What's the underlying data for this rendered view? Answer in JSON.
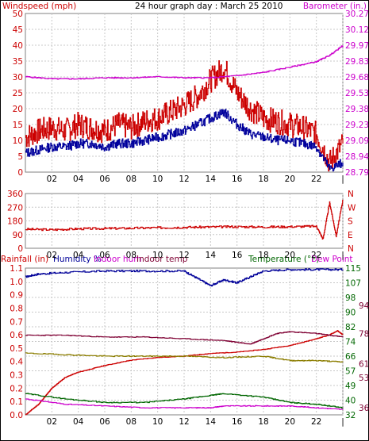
{
  "colors": {
    "windspeed": "#cc0000",
    "windspeed_avg": "#00009c",
    "barometer": "#cc00cc",
    "direction": "#cc0000",
    "rainfall": "#cc0000",
    "humidity": "#000099",
    "indoor_hum": "#8b7d00",
    "indoor_temp": "#7f0033",
    "temperature": "#006600",
    "dew_point": "#cc00cc",
    "grid": "#c8c8c8"
  },
  "chart_data": [
    {
      "type": "line",
      "title": "24 hour graph day : March 25 2010",
      "ylabel_left": "Windspeed (mph)",
      "ylabel_right": "Barometer (in.)",
      "x_ticks": [
        "02",
        "04",
        "06",
        "08",
        "10",
        "12",
        "14",
        "16",
        "18",
        "20",
        "22",
        "|"
      ],
      "ylim_left": [
        0,
        50
      ],
      "y_ticks_left": [
        "0",
        "5",
        "10",
        "15",
        "20",
        "25",
        "30",
        "35",
        "40",
        "45",
        "50"
      ],
      "ylim_right": [
        28.79,
        30.27
      ],
      "y_ticks_right": [
        "28.79",
        "28.94",
        "29.09",
        "29.23",
        "29.38",
        "29.53",
        "29.68",
        "29.83",
        "29.97",
        "30.12",
        "30.27"
      ],
      "grid": true,
      "series": [
        {
          "axis": "left",
          "x": [
            0,
            1,
            2,
            3,
            4,
            5,
            6,
            7,
            8,
            9,
            10,
            11,
            12,
            13,
            14,
            15,
            16,
            17,
            18,
            19,
            20,
            21,
            22,
            23,
            24
          ],
          "values": [
            11,
            13,
            14,
            13,
            15,
            14,
            13,
            15,
            14,
            16,
            17,
            19,
            21,
            24,
            29,
            33,
            25,
            20,
            17,
            16,
            15,
            14,
            12,
            3,
            9
          ]
        },
        {
          "axis": "left",
          "x": [
            0,
            1,
            2,
            3,
            4,
            5,
            6,
            7,
            8,
            9,
            10,
            11,
            12,
            13,
            14,
            15,
            16,
            17,
            18,
            19,
            20,
            21,
            22,
            23,
            24
          ],
          "values": [
            6,
            7,
            8,
            8,
            9,
            9,
            8,
            9,
            9,
            10,
            11,
            12,
            13,
            15,
            17,
            19,
            15,
            12,
            11,
            10,
            10,
            9,
            8,
            1,
            3
          ]
        },
        {
          "axis": "right",
          "x": [
            0,
            2,
            4,
            6,
            8,
            10,
            12,
            14,
            16,
            18,
            20,
            22,
            23,
            24
          ],
          "values": [
            29.68,
            29.66,
            29.66,
            29.67,
            29.67,
            29.68,
            29.67,
            29.67,
            29.69,
            29.72,
            29.77,
            29.82,
            29.88,
            29.97
          ]
        }
      ]
    },
    {
      "type": "line",
      "x_ticks": [
        "02",
        "04",
        "06",
        "08",
        "10",
        "12",
        "14",
        "16",
        "18",
        "20",
        "22",
        "|"
      ],
      "ylim_left": [
        0,
        360
      ],
      "y_ticks_left": [
        "0",
        "90",
        "180",
        "270",
        "360"
      ],
      "y_ticks_right": [
        "N",
        "E",
        "S",
        "W",
        "N"
      ],
      "grid": true,
      "series": [
        {
          "axis": "left",
          "x": [
            0,
            2,
            4,
            6,
            8,
            10,
            12,
            14,
            16,
            18,
            20,
            22,
            22.5,
            23,
            23.5,
            24
          ],
          "values": [
            125,
            122,
            128,
            130,
            132,
            135,
            138,
            140,
            142,
            140,
            142,
            145,
            60,
            300,
            80,
            320
          ]
        }
      ]
    },
    {
      "type": "line",
      "legend": [
        "Rainfall (in)",
        "Humidity %",
        "Indoor hum",
        "Indoor temp",
        "Temperature (°F)",
        "Dew Point"
      ],
      "x_ticks": [
        "02",
        "04",
        "06",
        "08",
        "10",
        "12",
        "14",
        "16",
        "18",
        "20",
        "22",
        "|"
      ],
      "ylim_left_rain": [
        0,
        1.1
      ],
      "y_ticks_rain": [
        "0.0",
        "0.1",
        "0.2",
        "0.3",
        "0.4",
        "0.5",
        "0.6",
        "0.7",
        "0.8",
        "0.9",
        "1.0",
        "1.1"
      ],
      "ylim_left_pct": [
        0,
        100
      ],
      "y_ticks_pct": [
        "0",
        "10",
        "20",
        "30",
        "40",
        "50",
        "60",
        "70",
        "80",
        "90",
        "100"
      ],
      "ylim_right_temp": [
        32,
        115
      ],
      "y_ticks_temp": [
        "32",
        "36",
        "40",
        "49",
        "53",
        "57",
        "61",
        "66",
        "74",
        "78",
        "82",
        "90",
        "94",
        "98",
        "107",
        "115"
      ],
      "y_ticks_temp_green": [
        "32",
        "40",
        "49",
        "57",
        "66",
        "74",
        "82",
        "90",
        "98",
        "107",
        "115"
      ],
      "y_ticks_temp_red": [
        "36",
        "53",
        "61",
        "78",
        "94"
      ],
      "grid": true,
      "series": [
        {
          "scale": "rain",
          "x": [
            0,
            1,
            2,
            3,
            4,
            6,
            8,
            10,
            12,
            14,
            16,
            18,
            20,
            22,
            23,
            23.6,
            24
          ],
          "values": [
            0.0,
            0.08,
            0.2,
            0.28,
            0.32,
            0.37,
            0.41,
            0.43,
            0.44,
            0.46,
            0.47,
            0.49,
            0.52,
            0.57,
            0.6,
            0.63,
            0.6
          ]
        },
        {
          "scale": "pct",
          "x": [
            0,
            1,
            3,
            6,
            9,
            12,
            13,
            14,
            15,
            16,
            17,
            18,
            20,
            22,
            24
          ],
          "values": [
            94,
            96,
            97,
            98,
            98,
            98,
            93,
            88,
            92,
            90,
            94,
            98,
            99,
            99,
            99
          ]
        },
        {
          "scale": "pct",
          "x": [
            0,
            3,
            6,
            9,
            12,
            15,
            18,
            20,
            22,
            24
          ],
          "values": [
            42,
            41,
            40,
            40,
            40,
            39,
            40,
            37,
            37,
            36
          ]
        },
        {
          "scale": "temp",
          "x": [
            0,
            3,
            6,
            9,
            12,
            15,
            17,
            18,
            19,
            20,
            22,
            24
          ],
          "values": [
            77,
            77,
            76,
            76,
            75,
            74,
            72,
            75,
            78,
            79,
            78,
            76
          ]
        },
        {
          "scale": "temp",
          "x": [
            0,
            3,
            6,
            9,
            12,
            14,
            15,
            18,
            20,
            22,
            24
          ],
          "values": [
            44,
            41,
            39,
            39,
            41,
            43,
            44,
            42,
            39,
            38,
            36
          ]
        },
        {
          "scale": "temp",
          "x": [
            0,
            3,
            6,
            9,
            12,
            14,
            15,
            18,
            20,
            22,
            24
          ],
          "values": [
            41,
            38,
            37,
            36,
            36,
            36,
            37,
            37,
            37,
            36,
            35
          ]
        }
      ]
    }
  ]
}
